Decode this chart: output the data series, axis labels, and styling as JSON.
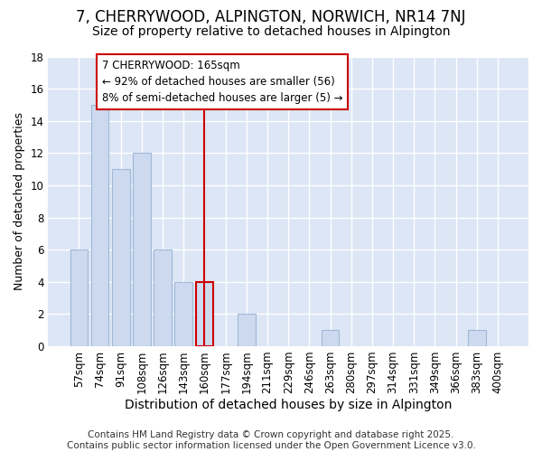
{
  "title": "7, CHERRYWOOD, ALPINGTON, NORWICH, NR14 7NJ",
  "subtitle": "Size of property relative to detached houses in Alpington",
  "xlabel": "Distribution of detached houses by size in Alpington",
  "ylabel": "Number of detached properties",
  "categories": [
    "57sqm",
    "74sqm",
    "91sqm",
    "108sqm",
    "126sqm",
    "143sqm",
    "160sqm",
    "177sqm",
    "194sqm",
    "211sqm",
    "229sqm",
    "246sqm",
    "263sqm",
    "280sqm",
    "297sqm",
    "314sqm",
    "331sqm",
    "349sqm",
    "366sqm",
    "383sqm",
    "400sqm"
  ],
  "values": [
    6,
    15,
    11,
    12,
    6,
    4,
    4,
    0,
    2,
    0,
    0,
    0,
    1,
    0,
    0,
    0,
    0,
    0,
    0,
    1,
    0
  ],
  "bar_color": "#cdd9ee",
  "bar_edgecolor": "#a0b8d8",
  "highlight_index": 6,
  "highlight_color": "#cc0000",
  "annotation_text": "7 CHERRYWOOD: 165sqm\n← 92% of detached houses are smaller (56)\n8% of semi-detached houses are larger (5) →",
  "annotation_box_facecolor": "#ffffff",
  "annotation_box_edgecolor": "#cc0000",
  "ylim": [
    0,
    18
  ],
  "yticks": [
    0,
    2,
    4,
    6,
    8,
    10,
    12,
    14,
    16,
    18
  ],
  "background_color": "#dce6f5",
  "grid_color": "#ffffff",
  "figure_facecolor": "#ffffff",
  "footer_text": "Contains HM Land Registry data © Crown copyright and database right 2025.\nContains public sector information licensed under the Open Government Licence v3.0.",
  "title_fontsize": 12,
  "subtitle_fontsize": 10,
  "ylabel_fontsize": 9,
  "xlabel_fontsize": 10,
  "tick_fontsize": 8.5,
  "annotation_fontsize": 8.5,
  "footer_fontsize": 7.5
}
